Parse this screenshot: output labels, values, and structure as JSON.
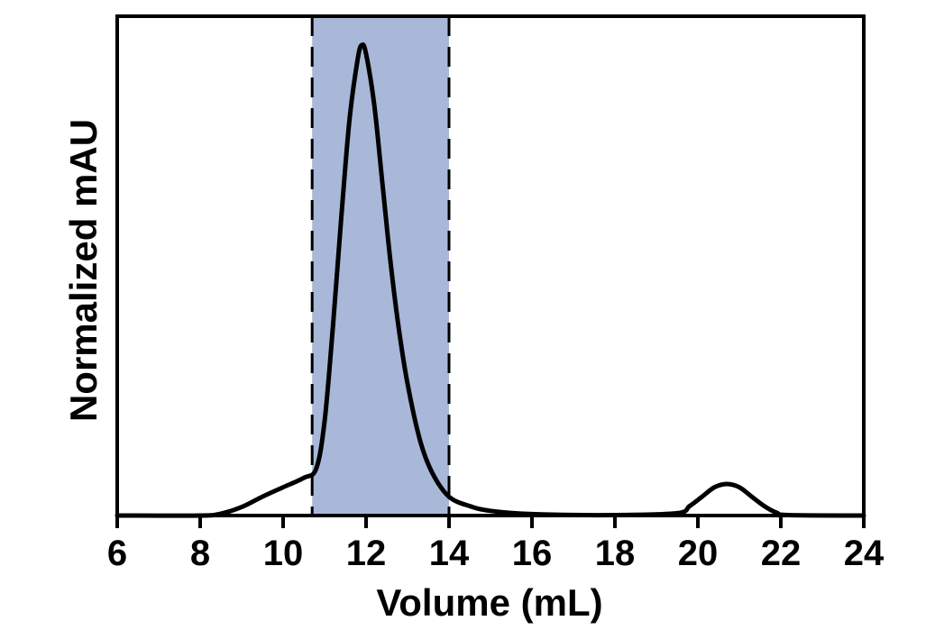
{
  "chart_data": {
    "type": "line",
    "title": "",
    "xlabel": "Volume (mL)",
    "ylabel": "Normalized mAU",
    "xlim": [
      6,
      24
    ],
    "ylim": [
      0,
      1.06
    ],
    "x_ticks": [
      6,
      8,
      10,
      12,
      14,
      16,
      18,
      20,
      22,
      24
    ],
    "x_tick_labels": [
      "6",
      "8",
      "10",
      "12",
      "14",
      "16",
      "18",
      "20",
      "22",
      "24"
    ],
    "y_ticks_shown": false,
    "grid": false,
    "legend": "none",
    "highlight_region": {
      "x_start": 10.7,
      "x_end": 14.0,
      "color": "#a9b8d8",
      "boundary_style": "dashed"
    },
    "line_color": "#000000",
    "series": [
      {
        "x": [
          6,
          8,
          8.5,
          9,
          9.5,
          10,
          10.5,
          10.8,
          11.0,
          11.2,
          11.4,
          11.6,
          11.8,
          11.9,
          12.0,
          12.2,
          12.4,
          12.6,
          12.8,
          13.0,
          13.3,
          13.6,
          14.0,
          14.5,
          15,
          16,
          18,
          19.5,
          19.8,
          20.1,
          20.4,
          20.7,
          21.0,
          21.3,
          21.6,
          21.9,
          22.2,
          24
        ],
        "y": [
          0,
          0,
          0.004,
          0.018,
          0.04,
          0.06,
          0.08,
          0.1,
          0.2,
          0.4,
          0.63,
          0.84,
          0.97,
          0.999,
          0.98,
          0.87,
          0.7,
          0.53,
          0.39,
          0.28,
          0.16,
          0.09,
          0.04,
          0.02,
          0.01,
          0.003,
          0.001,
          0.005,
          0.02,
          0.04,
          0.06,
          0.067,
          0.06,
          0.04,
          0.02,
          0.006,
          0.001,
          0
        ]
      }
    ]
  }
}
